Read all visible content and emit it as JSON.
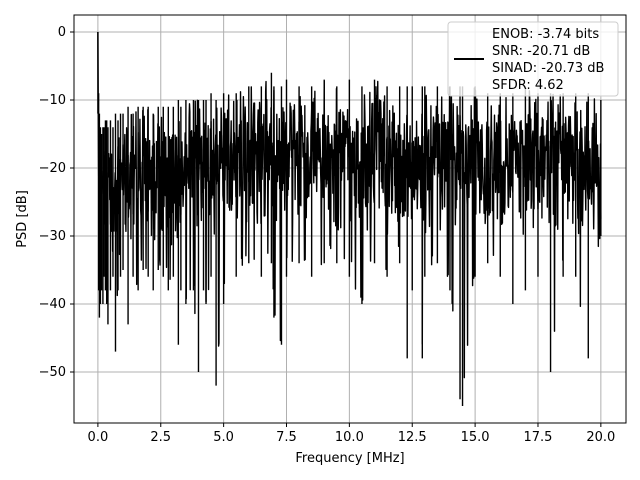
{
  "chart_data": {
    "type": "line",
    "title": "",
    "xlabel": "Frequency [MHz]",
    "ylabel": "PSD [dB]",
    "xlim": [
      -0.95,
      21.0
    ],
    "ylim": [
      -57.5,
      2.5
    ],
    "xticks": [
      0.0,
      2.5,
      5.0,
      7.5,
      10.0,
      12.5,
      15.0,
      17.5,
      20.0
    ],
    "xtick_labels": [
      "0.0",
      "2.5",
      "5.0",
      "7.5",
      "10.0",
      "12.5",
      "15.0",
      "17.5",
      "20.0"
    ],
    "yticks": [
      0,
      -10,
      -20,
      -30,
      -40,
      -50
    ],
    "ytick_labels": [
      "0",
      "−10",
      "−20",
      "−30",
      "−40",
      "−50"
    ],
    "grid": true,
    "legend_position": "top-right",
    "legend_lines": [
      "ENOB: -3.74 bits",
      "SNR: -20.71 dB",
      "SINAD: -20.73 dB",
      "SFDR: 4.62"
    ],
    "series": [
      {
        "color": "#000000",
        "note_estimated": true,
        "x": [
          0.0,
          0.03,
          0.06,
          0.1,
          0.15,
          0.2,
          0.25,
          0.3,
          0.35,
          0.4,
          0.5,
          0.6,
          0.7,
          0.8,
          0.9,
          1.0,
          1.2,
          1.4,
          1.6,
          1.8,
          2.0,
          2.2,
          2.4,
          2.6,
          2.8,
          3.0,
          3.2,
          3.3,
          3.5,
          3.8,
          4.0,
          4.2,
          4.3,
          4.5,
          4.7,
          5.0,
          5.5,
          6.0,
          6.5,
          6.9,
          7.0,
          7.3,
          7.5,
          8.0,
          8.5,
          9.0,
          9.5,
          10.0,
          10.5,
          11.0,
          11.5,
          12.0,
          12.3,
          12.5,
          12.9,
          13.0,
          13.5,
          14.0,
          14.4,
          14.5,
          15.0,
          15.5,
          16.0,
          16.5,
          17.0,
          17.5,
          18.0,
          18.5,
          19.0,
          19.5,
          20.0
        ],
        "y_max": [
          0.0,
          -9,
          -12,
          -14,
          -15,
          -14,
          -14,
          -13,
          -13,
          -14,
          -13,
          -14,
          -12,
          -13,
          -12,
          -12,
          -11,
          -12,
          -11,
          -11,
          -11,
          -12,
          -11,
          -11,
          -11,
          -11,
          -10,
          -11,
          -10,
          -10,
          -10,
          -10,
          -10,
          -9,
          -10,
          -9,
          -9,
          -8,
          -8,
          -6,
          -8,
          -8,
          -7,
          -8,
          -8,
          -7,
          -8,
          -7,
          -8,
          -7,
          -8,
          -8,
          -8,
          -8,
          -8,
          -8,
          -8,
          -8,
          -8,
          -8,
          -8,
          -9,
          -9,
          -9,
          -8,
          -9,
          -9,
          -9,
          -9,
          -9,
          -10
        ],
        "y_min": [
          -12,
          -38,
          -42,
          -40,
          -38,
          -40,
          -36,
          -38,
          -40,
          -43,
          -38,
          -36,
          -47,
          -38,
          -36,
          -35,
          -43,
          -36,
          -38,
          -35,
          -36,
          -38,
          -35,
          -36,
          -38,
          -36,
          -46,
          -38,
          -40,
          -38,
          -50,
          -38,
          -40,
          -36,
          -52,
          -40,
          -36,
          -34,
          -36,
          -34,
          -42,
          -46,
          -36,
          -34,
          -36,
          -34,
          -34,
          -36,
          -40,
          -34,
          -36,
          -34,
          -48,
          -38,
          -48,
          -36,
          -34,
          -38,
          -54,
          -55,
          -36,
          -34,
          -36,
          -40,
          -38,
          -36,
          -50,
          -36,
          -36,
          -48,
          -30
        ]
      }
    ]
  }
}
